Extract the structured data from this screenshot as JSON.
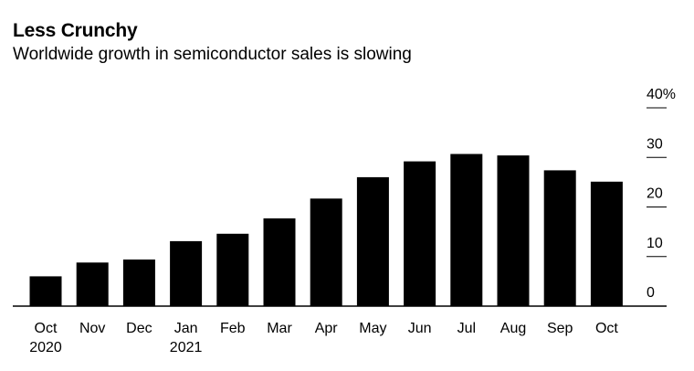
{
  "header": {
    "title": "Less Crunchy",
    "subtitle": "Worldwide growth in semiconductor sales is slowing"
  },
  "chart_data": {
    "type": "bar",
    "title": "Less Crunchy",
    "subtitle": "Worldwide growth in semiconductor sales is slowing",
    "xlabel": "",
    "ylabel": "",
    "categories": [
      "Oct 2020",
      "Nov",
      "Dec",
      "Jan 2021",
      "Feb",
      "Mar",
      "Apr",
      "May",
      "Jun",
      "Jul",
      "Aug",
      "Sep",
      "Oct"
    ],
    "category_labels": [
      [
        "Oct",
        "2020"
      ],
      [
        "Nov"
      ],
      [
        "Dec"
      ],
      [
        "Jan",
        "2021"
      ],
      [
        "Feb"
      ],
      [
        "Mar"
      ],
      [
        "Apr"
      ],
      [
        "May"
      ],
      [
        "Jun"
      ],
      [
        "Jul"
      ],
      [
        "Aug"
      ],
      [
        "Sep"
      ],
      [
        "Oct"
      ]
    ],
    "values": [
      6.0,
      8.8,
      9.4,
      13.1,
      14.6,
      17.7,
      21.7,
      26.0,
      29.2,
      30.7,
      30.4,
      27.4,
      25.1
    ],
    "unit": "%",
    "ylim": [
      0,
      40
    ],
    "yticks": [
      0,
      10,
      20,
      30,
      40
    ],
    "ytick_labels": [
      "0",
      "10",
      "20",
      "30",
      "40%"
    ],
    "y_axis_position": "right",
    "grid": false,
    "bar_color": "#000000"
  }
}
